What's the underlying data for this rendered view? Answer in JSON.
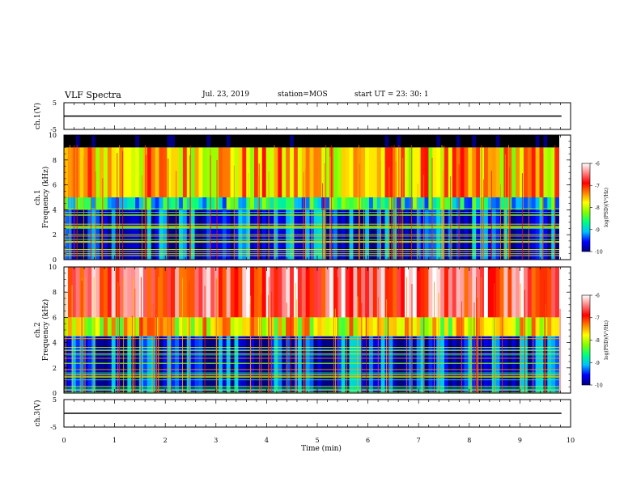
{
  "header": {
    "title": "VLF Spectra",
    "date": "Jul. 23, 2019",
    "station": "station=MOS",
    "start": "start UT =  23: 30: 1"
  },
  "colorbar": {
    "label": "log(PSD)(V²/Hz)",
    "ticks": [
      "-6",
      "-7",
      "-8",
      "-9",
      "-10"
    ],
    "stops": [
      "#000080",
      "#0000ff",
      "#00c0ff",
      "#00ff80",
      "#80ff00",
      "#ffff00",
      "#ff8000",
      "#ff0000",
      "#ff8080",
      "#ffffff"
    ]
  },
  "chart_data": [
    {
      "type": "line",
      "ylabel": "ch.1(V)",
      "ylim": [
        -5,
        5
      ],
      "yticks": [
        "5",
        "-5"
      ],
      "x": [
        0,
        9.82
      ],
      "y": [
        0,
        0
      ]
    },
    {
      "type": "heatmap",
      "ylabel": "ch.1",
      "ylabel2": "Frequency (kHz)",
      "ylim": [
        0,
        10
      ],
      "yticks": [
        "0",
        "2",
        "4",
        "6",
        "8",
        "10"
      ],
      "xlim": [
        0,
        10
      ],
      "zlim": [
        -10,
        -6
      ],
      "description_bands": [
        {
          "f_low": 9.0,
          "f_high": 10.0,
          "level": -11
        },
        {
          "f_low": 5.0,
          "f_high": 9.0,
          "level": -7.6
        },
        {
          "f_low": 4.0,
          "f_high": 5.0,
          "level": -8.8
        },
        {
          "f_low": 0.0,
          "f_high": 4.0,
          "level": -9.6
        }
      ]
    },
    {
      "type": "heatmap",
      "ylabel": "ch.2",
      "ylabel2": "Frequency (kHz)",
      "ylim": [
        0,
        10
      ],
      "yticks": [
        "0",
        "2",
        "4",
        "6",
        "8",
        "10"
      ],
      "xlim": [
        0,
        10
      ],
      "zlim": [
        -10,
        -6
      ],
      "description_bands": [
        {
          "f_low": 6.0,
          "f_high": 10.0,
          "level": -6.6
        },
        {
          "f_low": 4.5,
          "f_high": 6.0,
          "level": -7.8
        },
        {
          "f_low": 0.0,
          "f_high": 4.5,
          "level": -9.6
        }
      ]
    },
    {
      "type": "line",
      "ylabel": "ch.3(V)",
      "ylim": [
        -5,
        5
      ],
      "yticks": [
        "5",
        "-5"
      ],
      "x": [
        0,
        9.82
      ],
      "y": [
        0,
        0
      ]
    }
  ],
  "xaxis": {
    "label": "Time (min)",
    "ticks": [
      "0",
      "1",
      "2",
      "3",
      "4",
      "5",
      "6",
      "7",
      "8",
      "9",
      "10"
    ]
  }
}
